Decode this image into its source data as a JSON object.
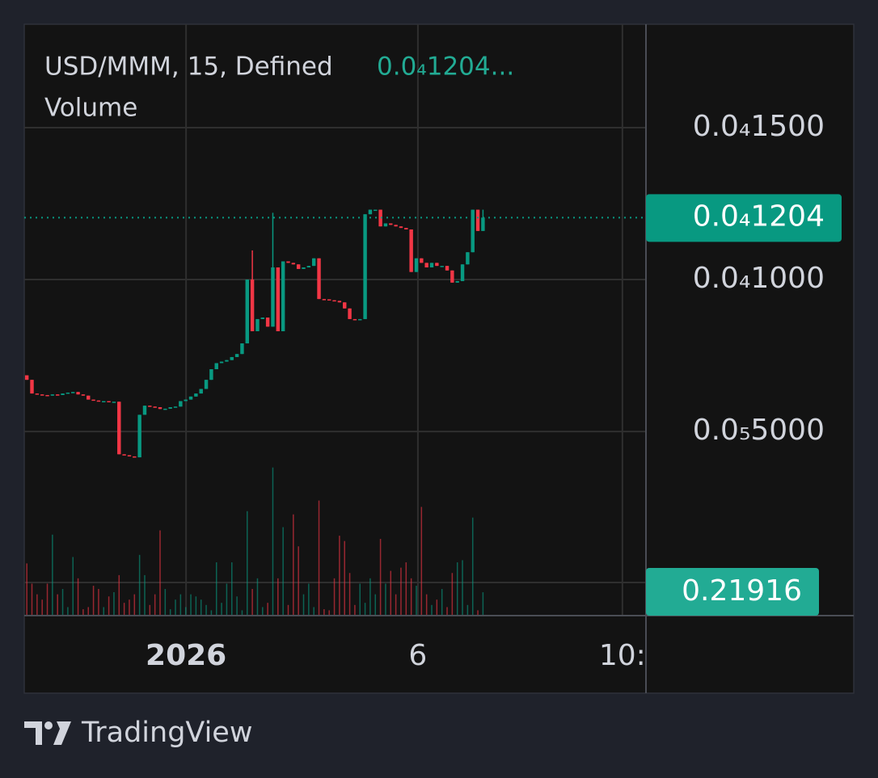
{
  "chart_data": {
    "type": "candlestick",
    "title": "USD/MMM, 15, Defined",
    "legend_value": "0.0₄1204...",
    "subtitle": "Volume",
    "up_color": "#089981",
    "down_color": "#f23645",
    "grid": true,
    "categories": [
      null,
      null,
      null,
      null,
      null,
      null,
      null,
      null,
      null,
      null,
      null,
      null,
      null,
      null,
      null,
      null,
      null,
      null,
      null,
      null,
      null,
      null,
      null,
      null,
      null,
      null,
      null,
      null,
      null,
      null,
      null,
      null,
      null,
      null,
      null,
      null,
      null,
      null,
      null,
      null,
      null,
      null,
      null,
      null,
      null,
      null,
      null,
      null,
      null,
      null,
      null,
      null,
      null,
      null,
      null,
      null,
      null,
      null,
      null,
      null,
      null,
      null,
      null,
      null,
      null,
      null,
      null,
      null,
      null,
      null,
      null,
      null,
      null,
      null,
      null,
      null,
      null,
      null,
      null,
      null,
      null,
      null,
      null,
      null,
      null,
      null,
      null,
      null,
      null,
      null
    ],
    "open": [
      6.85e-06,
      6.7e-06,
      6.25e-06,
      6.22e-06,
      6.2e-06,
      6.18e-06,
      6.22e-06,
      6.2e-06,
      6.25e-06,
      6.28e-06,
      6.3e-06,
      6.22e-06,
      6.18e-06,
      6.05e-06,
      6.02e-06,
      6e-06,
      6e-06,
      5.98e-06,
      5.98e-06,
      4.25e-06,
      4.22e-06,
      4.18e-06,
      4.15e-06,
      5.55e-06,
      5.85e-06,
      5.82e-06,
      5.8e-06,
      5.74e-06,
      5.75e-06,
      5.8e-06,
      5.82e-06,
      6e-06,
      6.05e-06,
      6.15e-06,
      6.25e-06,
      6.4e-06,
      6.7e-06,
      7.05e-06,
      7.25e-06,
      7.3e-06,
      7.35e-06,
      7.45e-06,
      7.55e-06,
      7.9e-06,
      1e-05,
      8.3e-06,
      8.7e-06,
      8.75e-06,
      8.45e-06,
      1.04e-05,
      8.3e-06,
      1.06e-05,
      1.055e-05,
      1.05e-05,
      1.035e-05,
      1.04e-05,
      1.045e-05,
      1.07e-05,
      9.36e-06,
      9.35e-06,
      9.32e-06,
      9.3e-06,
      9.25e-06,
      9.05e-06,
      8.7e-06,
      8.68e-06,
      8.7e-06,
      1.215e-05,
      1.23e-05,
      1.23e-05,
      1.175e-05,
      1.185e-05,
      1.18e-05,
      1.175e-05,
      1.17e-05,
      1.165e-05,
      1.025e-05,
      1.07e-05,
      1.055e-05,
      1.04e-05,
      1.055e-05,
      1.045e-05,
      1.045e-05,
      1.03e-05,
      9.9e-06,
      9.95e-06,
      1.05e-05,
      1.09e-05,
      1.23e-05,
      1.16e-05
    ],
    "high": [
      6.85e-06,
      6.7e-06,
      6.25e-06,
      6.22e-06,
      6.2e-06,
      6.22e-06,
      6.22e-06,
      6.25e-06,
      6.28e-06,
      6.3e-06,
      6.3e-06,
      6.22e-06,
      6.18e-06,
      6.05e-06,
      6.02e-06,
      6e-06,
      6e-06,
      5.98e-06,
      5.98e-06,
      4.25e-06,
      4.22e-06,
      4.18e-06,
      5.55e-06,
      5.85e-06,
      5.85e-06,
      5.82e-06,
      5.8e-06,
      5.75e-06,
      5.8e-06,
      5.82e-06,
      6e-06,
      6.05e-06,
      6.15e-06,
      6.25e-06,
      6.4e-06,
      6.7e-06,
      7.05e-06,
      7.25e-06,
      7.3e-06,
      7.35e-06,
      7.45e-06,
      7.55e-06,
      7.9e-06,
      1e-05,
      1.096e-05,
      8.7e-06,
      8.75e-06,
      8.75e-06,
      1.22e-05,
      1.04e-05,
      1.06e-05,
      1.06e-05,
      1.055e-05,
      1.05e-05,
      1.04e-05,
      1.045e-05,
      1.07e-05,
      1.07e-05,
      9.36e-06,
      9.35e-06,
      9.32e-06,
      9.3e-06,
      9.25e-06,
      9.05e-06,
      8.7e-06,
      8.7e-06,
      1.215e-05,
      1.23e-05,
      1.23e-05,
      1.23e-05,
      1.185e-05,
      1.185e-05,
      1.18e-05,
      1.175e-05,
      1.17e-05,
      1.165e-05,
      1.07e-05,
      1.07e-05,
      1.055e-05,
      1.055e-05,
      1.055e-05,
      1.045e-05,
      1.045e-05,
      1.03e-05,
      9.95e-06,
      1.05e-05,
      1.09e-05,
      1.23e-05,
      1.23e-05,
      1.23e-05
    ],
    "low": [
      6.7e-06,
      6.25e-06,
      6.22e-06,
      6.2e-06,
      6.18e-06,
      6.18e-06,
      6.2e-06,
      6.2e-06,
      6.25e-06,
      6.28e-06,
      6.22e-06,
      6.18e-06,
      6.05e-06,
      6.02e-06,
      6e-06,
      6e-06,
      5.98e-06,
      5.98e-06,
      4.25e-06,
      4.22e-06,
      4.18e-06,
      4.15e-06,
      4.15e-06,
      5.55e-06,
      5.82e-06,
      5.8e-06,
      5.74e-06,
      5.74e-06,
      5.75e-06,
      5.8e-06,
      5.82e-06,
      6e-06,
      6.05e-06,
      6.15e-06,
      6.25e-06,
      6.4e-06,
      6.7e-06,
      7.05e-06,
      7.25e-06,
      7.3e-06,
      7.35e-06,
      7.45e-06,
      7.55e-06,
      7.9e-06,
      8.3e-06,
      8.3e-06,
      8.7e-06,
      8.45e-06,
      8.45e-06,
      8.3e-06,
      8.3e-06,
      1.055e-05,
      1.05e-05,
      1.035e-05,
      1.035e-05,
      1.04e-05,
      1.045e-05,
      9.36e-06,
      9.35e-06,
      9.32e-06,
      9.3e-06,
      9.25e-06,
      9.05e-06,
      8.7e-06,
      8.68e-06,
      8.68e-06,
      8.7e-06,
      1.215e-05,
      1.23e-05,
      1.175e-05,
      1.175e-05,
      1.18e-05,
      1.175e-05,
      1.17e-05,
      1.165e-05,
      1.025e-05,
      1.025e-05,
      1.055e-05,
      1.04e-05,
      1.04e-05,
      1.045e-05,
      1.045e-05,
      1.03e-05,
      9.9e-06,
      9.9e-06,
      9.95e-06,
      1.05e-05,
      1.09e-05,
      1.16e-05,
      1.16e-05
    ],
    "close": [
      6.7e-06,
      6.25e-06,
      6.22e-06,
      6.2e-06,
      6.18e-06,
      6.22e-06,
      6.2e-06,
      6.25e-06,
      6.28e-06,
      6.3e-06,
      6.22e-06,
      6.18e-06,
      6.05e-06,
      6.02e-06,
      6e-06,
      6e-06,
      5.98e-06,
      5.98e-06,
      4.25e-06,
      4.22e-06,
      4.18e-06,
      4.15e-06,
      5.55e-06,
      5.85e-06,
      5.82e-06,
      5.8e-06,
      5.74e-06,
      5.75e-06,
      5.8e-06,
      5.82e-06,
      6e-06,
      6.05e-06,
      6.15e-06,
      6.25e-06,
      6.4e-06,
      6.7e-06,
      7.05e-06,
      7.25e-06,
      7.3e-06,
      7.35e-06,
      7.45e-06,
      7.55e-06,
      7.9e-06,
      1e-05,
      8.3e-06,
      8.7e-06,
      8.75e-06,
      8.45e-06,
      1.04e-05,
      8.3e-06,
      1.06e-05,
      1.055e-05,
      1.05e-05,
      1.035e-05,
      1.04e-05,
      1.045e-05,
      1.07e-05,
      9.36e-06,
      9.35e-06,
      9.32e-06,
      9.3e-06,
      9.25e-06,
      9.05e-06,
      8.7e-06,
      8.68e-06,
      8.7e-06,
      1.215e-05,
      1.23e-05,
      1.23e-05,
      1.175e-05,
      1.185e-05,
      1.18e-05,
      1.175e-05,
      1.17e-05,
      1.165e-05,
      1.025e-05,
      1.07e-05,
      1.055e-05,
      1.04e-05,
      1.055e-05,
      1.045e-05,
      1.045e-05,
      1.03e-05,
      9.9e-06,
      9.95e-06,
      1.05e-05,
      1.09e-05,
      1.23e-05,
      1.16e-05,
      1.204e-05
    ],
    "volume": [
      0.49,
      0.3,
      0.2,
      0.15,
      0.3,
      0.76,
      0.2,
      0.25,
      0.08,
      0.55,
      0.35,
      0.06,
      0.08,
      0.28,
      0.25,
      0.08,
      0.18,
      0.22,
      0.38,
      0.12,
      0.15,
      0.2,
      0.57,
      0.38,
      0.1,
      0.2,
      0.8,
      0.25,
      0.06,
      0.15,
      0.2,
      0.08,
      0.2,
      0.18,
      0.15,
      0.1,
      0.05,
      0.5,
      0.12,
      0.3,
      0.5,
      0.18,
      0.05,
      0.98,
      0.25,
      0.35,
      0.08,
      0.12,
      1.39,
      0.35,
      0.83,
      0.1,
      0.95,
      0.65,
      0.2,
      0.3,
      0.08,
      1.08,
      0.06,
      0.05,
      0.35,
      0.75,
      0.7,
      0.4,
      0.1,
      0.3,
      0.12,
      0.35,
      0.2,
      0.72,
      0.3,
      0.42,
      0.2,
      0.45,
      0.5,
      0.35,
      0.28,
      1.02,
      0.2,
      0.1,
      0.15,
      0.25,
      0.08,
      0.4,
      0.5,
      0.52,
      0.1,
      0.92,
      0.05,
      0.21916
    ],
    "volume_ylim": [
      0,
      5.55
    ],
    "ylim": [
      -1.06e-06,
      1.8404e-05
    ],
    "yticks": [
      {
        "value": 1.5e-05,
        "label": "0.0₄1500"
      },
      {
        "value": 1e-05,
        "label": "0.0₄1000"
      },
      {
        "value": 5e-06,
        "label": "0.0₅5000"
      }
    ],
    "xlim": [
      -0.5,
      120.8
    ],
    "xticks": [
      {
        "value": 31.07,
        "label": "2026"
      },
      {
        "value": 76.3,
        "label": "6"
      },
      {
        "value": 116.2,
        "label": "10:"
      }
    ],
    "last_price": {
      "value": 1.204e-05,
      "label": "0.0₄1204"
    }
  },
  "footer": {
    "brand": "TradingView"
  }
}
